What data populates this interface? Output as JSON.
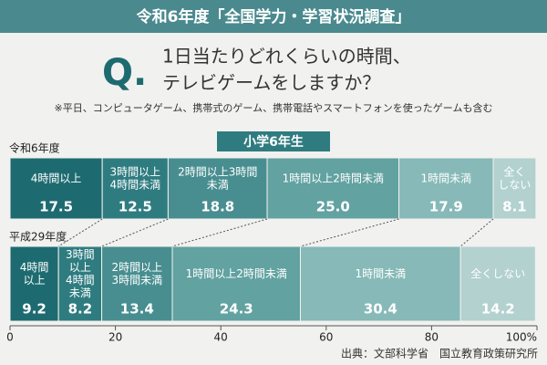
{
  "chart_data": {
    "type": "stacked_barh",
    "title": "令和6年度「全国学力・学習状況調査」",
    "question_mark": "Q.",
    "question": [
      "1日当たりどれくらいの時間、",
      "テレビゲームをしますか？"
    ],
    "note": "※平日、コンピュータゲーム、携帯式のゲーム、携帯電話やスマートフォンを使ったゲームも含む",
    "subtitle": "小学6年生",
    "source": "出典：文部科学省　国立教育政策研究所",
    "categories": [
      "令和6年度",
      "平成29年度"
    ],
    "series": [
      {
        "name": "4時間以上",
        "color": "#1d6b70",
        "values": [
          17.5,
          9.2
        ]
      },
      {
        "name": "3時間以上4時間未満",
        "color": "#2f7c80",
        "values": [
          12.5,
          8.2
        ]
      },
      {
        "name": "2時間以上3時間未満",
        "color": "#488e90",
        "values": [
          18.8,
          13.4
        ]
      },
      {
        "name": "1時間以上2時間未満",
        "color": "#62a2a1",
        "values": [
          25.0,
          24.3
        ],
        "value_labels": [
          "25.0",
          "24.3"
        ]
      },
      {
        "name": "1時間未満",
        "color": "#86b9b7",
        "values": [
          17.9,
          30.4
        ]
      },
      {
        "name": "全くしない",
        "color": "#b2d1cf",
        "values": [
          8.1,
          14.2
        ]
      }
    ],
    "xlim": [
      0,
      100
    ],
    "xticks": [
      0,
      20,
      40,
      60,
      80,
      {
        "value": 100,
        "label": "100%"
      }
    ]
  }
}
